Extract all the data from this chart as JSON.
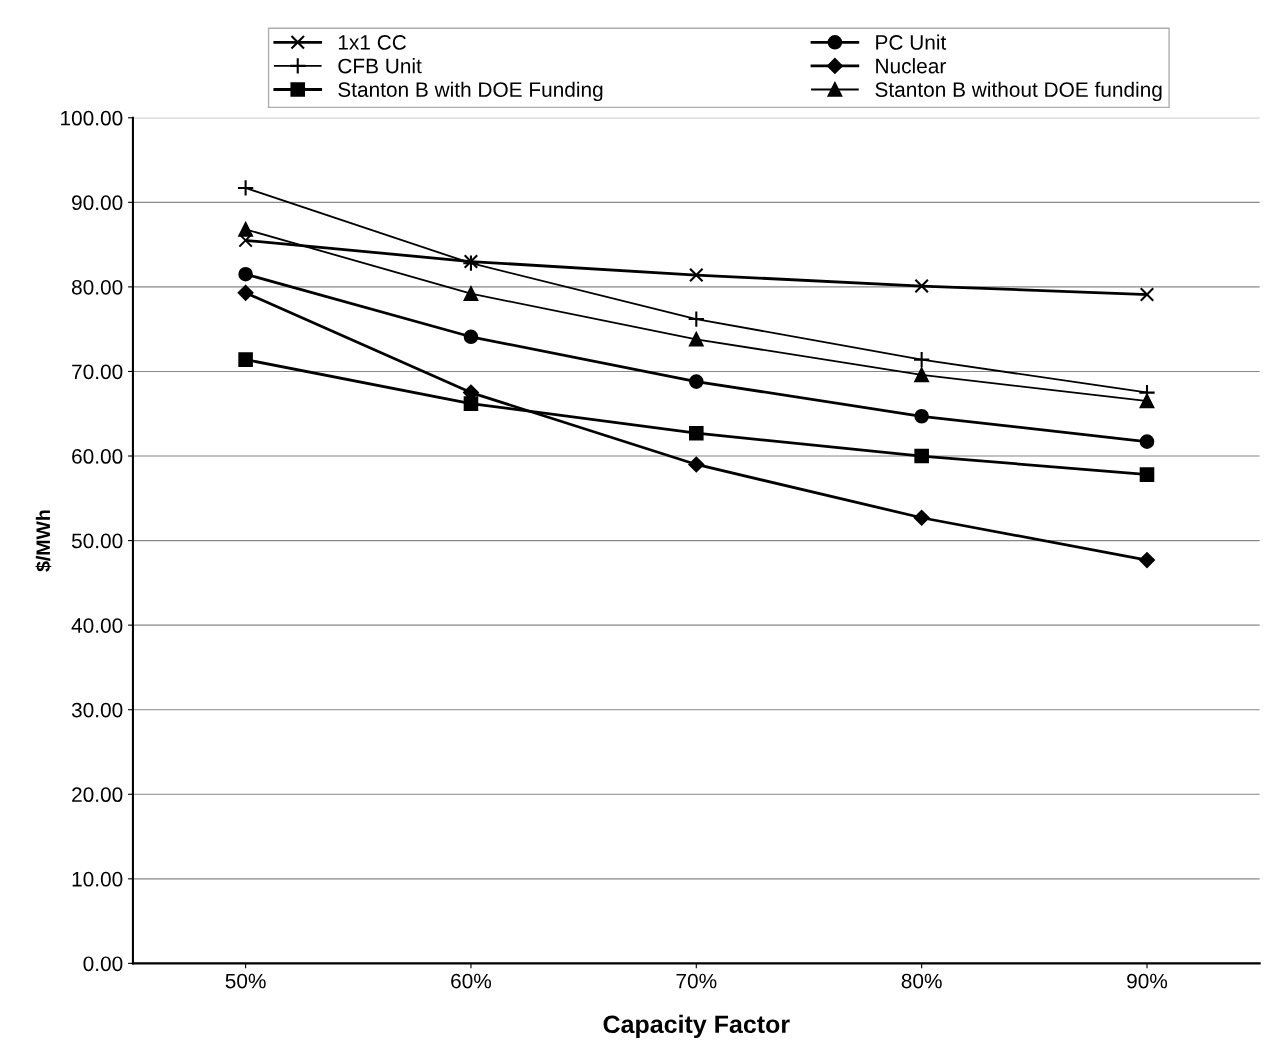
{
  "chart_data": {
    "type": "line",
    "xlabel": "Capacity Factor",
    "ylabel": "$/MWh",
    "categories": [
      "50%",
      "60%",
      "70%",
      "80%",
      "90%"
    ],
    "series": [
      {
        "name": "1x1 CC",
        "color": "#000000",
        "marker": "cross",
        "values": [
          85.5,
          83.0,
          81.4,
          80.1,
          79.1
        ]
      },
      {
        "name": "PC Unit",
        "color": "#000000",
        "marker": "circle",
        "values": [
          81.5,
          74.1,
          68.8,
          64.7,
          61.7
        ]
      },
      {
        "name": "CFB Unit",
        "color": "#000000",
        "marker": "plus",
        "values": [
          91.7,
          82.8,
          76.2,
          71.4,
          67.5
        ]
      },
      {
        "name": "Nuclear",
        "color": "#000000",
        "marker": "diamond",
        "values": [
          79.3,
          67.5,
          59.0,
          52.7,
          47.7
        ]
      },
      {
        "name": "Stanton B with DOE Funding",
        "color": "#000000",
        "marker": "square",
        "values": [
          71.4,
          66.2,
          62.7,
          60.0,
          57.8
        ]
      },
      {
        "name": "Stanton B without DOE funding",
        "color": "#000000",
        "marker": "triangle",
        "values": [
          86.8,
          79.2,
          73.8,
          69.6,
          66.5
        ]
      }
    ],
    "ylim": [
      0,
      100
    ],
    "yticks": [
      {
        "value": 0,
        "label": "0.00"
      },
      {
        "value": 10,
        "label": "10.00"
      },
      {
        "value": 20,
        "label": "20.00"
      },
      {
        "value": 30,
        "label": "30.00"
      },
      {
        "value": 40,
        "label": "40.00"
      },
      {
        "value": 50,
        "label": "50.00"
      },
      {
        "value": 60,
        "label": "60.00"
      },
      {
        "value": 70,
        "label": "70.00"
      },
      {
        "value": 80,
        "label": "80.00"
      },
      {
        "value": 90,
        "label": "90.00"
      },
      {
        "value": 100,
        "label": "100.00"
      }
    ],
    "grid": "y",
    "legend": "top",
    "line_style": "solid"
  }
}
